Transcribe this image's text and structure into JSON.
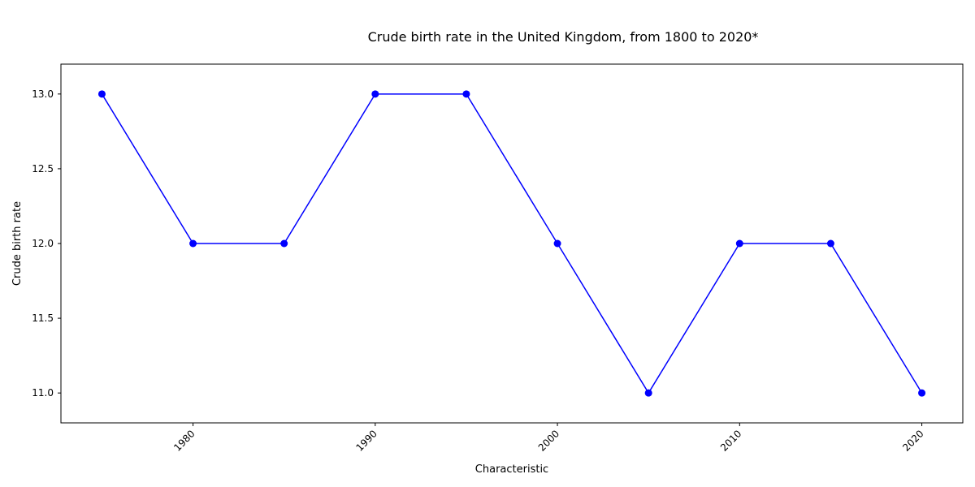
{
  "chart_data": {
    "type": "line",
    "title": "Crude birth rate in the United Kingdom, from 1800 to 2020*",
    "xlabel": "Characteristic",
    "ylabel": "Crude birth rate",
    "x": [
      1975,
      1980,
      1985,
      1990,
      1995,
      2000,
      2005,
      2010,
      2015,
      2020
    ],
    "series": [
      {
        "values": [
          13,
          12,
          12,
          13,
          13,
          12,
          11,
          12,
          12,
          11
        ]
      }
    ],
    "xlim": [
      1972.75,
      2022.25
    ],
    "ylim": [
      10.8,
      13.2
    ],
    "x_ticks": [
      1980,
      1990,
      2000,
      2010,
      2020
    ],
    "x_tick_labels": [
      "1980",
      "1990",
      "2000",
      "2010",
      "2020"
    ],
    "y_ticks": [
      11.0,
      11.5,
      12.0,
      12.5,
      13.0
    ],
    "y_tick_labels": [
      "11.0",
      "11.5",
      "12.0",
      "12.5",
      "13.0"
    ],
    "grid": false,
    "legend": "none",
    "line_color": "#0000ff",
    "marker": "circle"
  }
}
